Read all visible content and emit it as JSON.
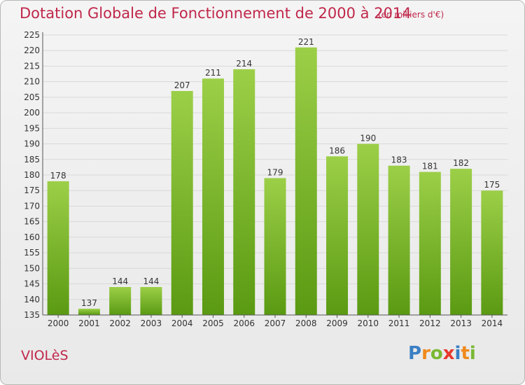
{
  "header": {
    "title": "Dotation Globale de Fonctionnement de 2000 à 2014",
    "unit": "(en milliers d'€)"
  },
  "footer": {
    "commune": "VIOLèS",
    "logo": "Proxiti"
  },
  "colors": {
    "title": "#c0274a",
    "bar_top": "#9ccf48",
    "bar_bottom": "#5a9a12",
    "grid": "#d9d9d9",
    "axis": "#555555"
  },
  "chart_data": {
    "type": "bar",
    "title": "Dotation Globale de Fonctionnement de 2000 à 2014",
    "subtitle": "(en milliers d'€)",
    "xlabel": "",
    "ylabel": "",
    "categories": [
      "2000",
      "2001",
      "2002",
      "2003",
      "2004",
      "2005",
      "2006",
      "2007",
      "2008",
      "2009",
      "2010",
      "2011",
      "2012",
      "2013",
      "2014"
    ],
    "values": [
      178,
      137,
      144,
      144,
      207,
      211,
      214,
      179,
      221,
      186,
      190,
      183,
      181,
      182,
      175
    ],
    "ylim": [
      135,
      225
    ],
    "yticks": [
      135,
      140,
      145,
      150,
      155,
      160,
      165,
      170,
      175,
      180,
      185,
      190,
      195,
      200,
      205,
      210,
      215,
      220,
      225
    ],
    "grid": true,
    "legend": "none"
  }
}
